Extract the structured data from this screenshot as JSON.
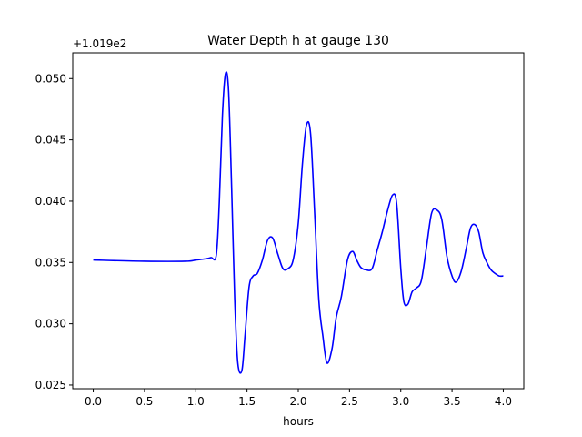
{
  "chart_data": {
    "type": "line",
    "title": "Water Depth h at gauge 130",
    "xlabel": "hours",
    "ylabel": "",
    "y_offset_text": "+1.019e2",
    "xlim": [
      -0.2,
      4.2
    ],
    "ylim": [
      0.0247,
      0.0521
    ],
    "x_ticks": [
      0.0,
      0.5,
      1.0,
      1.5,
      2.0,
      2.5,
      3.0,
      3.5,
      4.0
    ],
    "x_tick_labels": [
      "0.0",
      "0.5",
      "1.0",
      "1.5",
      "2.0",
      "2.5",
      "3.0",
      "3.5",
      "4.0"
    ],
    "y_ticks": [
      0.025,
      0.03,
      0.035,
      0.04,
      0.045,
      0.05
    ],
    "y_tick_labels": [
      "0.025",
      "0.030",
      "0.035",
      "0.040",
      "0.045",
      "0.050"
    ],
    "grid": false,
    "legend": "none",
    "series": [
      {
        "color": "#0000ff",
        "x": [
          0.0,
          0.5,
          0.9,
          1.0,
          1.1,
          1.15,
          1.2,
          1.23,
          1.26,
          1.29,
          1.32,
          1.35,
          1.38,
          1.41,
          1.45,
          1.48,
          1.52,
          1.56,
          1.6,
          1.65,
          1.7,
          1.75,
          1.8,
          1.85,
          1.9,
          1.95,
          2.0,
          2.04,
          2.08,
          2.12,
          2.16,
          2.2,
          2.24,
          2.28,
          2.33,
          2.37,
          2.42,
          2.48,
          2.53,
          2.57,
          2.61,
          2.66,
          2.72,
          2.77,
          2.82,
          2.87,
          2.92,
          2.96,
          3.0,
          3.03,
          3.07,
          3.11,
          3.15,
          3.2,
          3.25,
          3.3,
          3.35,
          3.4,
          3.45,
          3.5,
          3.54,
          3.59,
          3.64,
          3.68,
          3.72,
          3.76,
          3.8,
          3.84,
          3.88,
          3.92,
          3.96,
          4.0
        ],
        "y": [
          0.0352,
          0.0351,
          0.0351,
          0.0352,
          0.0353,
          0.0354,
          0.0356,
          0.04,
          0.047,
          0.0504,
          0.049,
          0.041,
          0.032,
          0.0268,
          0.0262,
          0.029,
          0.033,
          0.0339,
          0.0341,
          0.0352,
          0.0368,
          0.037,
          0.0357,
          0.0345,
          0.0345,
          0.0352,
          0.0382,
          0.043,
          0.0462,
          0.0455,
          0.039,
          0.032,
          0.029,
          0.0268,
          0.028,
          0.0305,
          0.0322,
          0.0352,
          0.0359,
          0.0352,
          0.0346,
          0.0344,
          0.0345,
          0.036,
          0.0375,
          0.0392,
          0.0405,
          0.0398,
          0.0345,
          0.0318,
          0.0316,
          0.0326,
          0.0329,
          0.0335,
          0.0362,
          0.039,
          0.0393,
          0.0385,
          0.0355,
          0.0339,
          0.0334,
          0.0343,
          0.0362,
          0.0378,
          0.0381,
          0.0375,
          0.0358,
          0.035,
          0.0344,
          0.0341,
          0.0339,
          0.0339
        ]
      }
    ]
  }
}
